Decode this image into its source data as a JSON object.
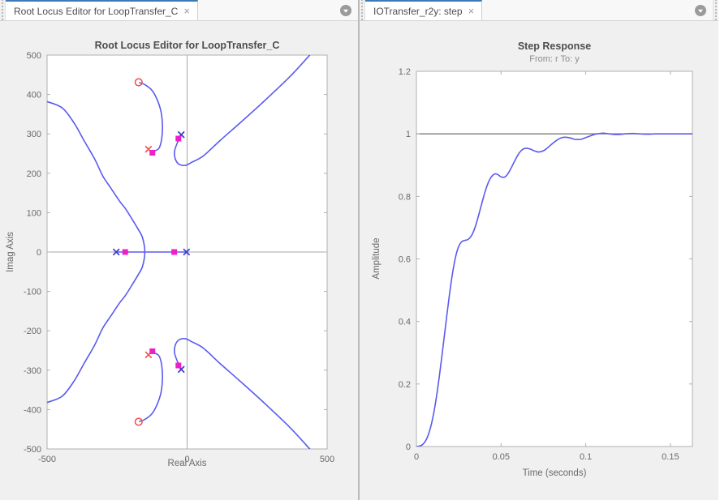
{
  "icons": {
    "close": "×",
    "menu_chevron": "▼"
  },
  "colors": {
    "curve": "#5a5af0",
    "pole_blue": "#3939cf",
    "pole_red": "#ef5656",
    "closed_loop": "#f01ec8",
    "axis_box": "#b0b0b0",
    "zero_line": "#a6a6a6",
    "reference_line": "#4a4a4a",
    "tab_accent": "#3d7bb5"
  },
  "left_panel": {
    "tab": {
      "label": "Root Locus Editor for LoopTransfer_C"
    }
  },
  "right_panel": {
    "tab": {
      "label": "IOTransfer_r2y: step"
    }
  },
  "chart_data": [
    {
      "type": "line",
      "name": "root-locus-editor",
      "title": "Root Locus Editor for LoopTransfer_C",
      "xlabel": "Real Axis",
      "ylabel": "Imag Axis",
      "xlim": [
        -500,
        500
      ],
      "ylim": [
        -500,
        500
      ],
      "grid": false,
      "xticks": {
        "values": [
          -500,
          0,
          500
        ],
        "labels": [
          "-500",
          "0",
          "500"
        ]
      },
      "yticks": {
        "values": [
          500,
          400,
          300,
          200,
          100,
          0,
          -100,
          -200,
          -300,
          -400,
          -500
        ],
        "labels": [
          "500",
          "400",
          "300",
          "200",
          "100",
          "0",
          "-100",
          "-200",
          "-300",
          "-400",
          "-500"
        ]
      },
      "zero_axis_lines": true,
      "branches": [
        [
          [
            -500,
            382
          ],
          [
            -446,
            366
          ],
          [
            -403,
            327
          ],
          [
            -368,
            283
          ],
          [
            -330,
            236
          ],
          [
            -301,
            193
          ],
          [
            -272,
            162
          ],
          [
            -241,
            129
          ],
          [
            -220,
            110
          ],
          [
            -197,
            84
          ],
          [
            -174,
            57
          ],
          [
            -159,
            36
          ],
          [
            -151,
            0
          ],
          [
            -159,
            -36
          ],
          [
            -174,
            -57
          ],
          [
            -197,
            -84
          ],
          [
            -220,
            -110
          ],
          [
            -241,
            -129
          ],
          [
            -272,
            -162
          ],
          [
            -301,
            -193
          ],
          [
            -330,
            -236
          ],
          [
            -368,
            -283
          ],
          [
            -403,
            -327
          ],
          [
            -446,
            -366
          ],
          [
            -500,
            -382
          ]
        ],
        [
          [
            -253,
            0
          ],
          [
            -2,
            0
          ]
        ],
        [
          [
            -123,
            255
          ],
          [
            -101,
            263
          ],
          [
            -91,
            286
          ],
          [
            -88,
            319
          ],
          [
            -93,
            356
          ],
          [
            -107,
            387
          ],
          [
            -126,
            411
          ],
          [
            -151,
            425
          ],
          [
            -170,
            430
          ]
        ],
        [
          [
            -123,
            -255
          ],
          [
            -101,
            -263
          ],
          [
            -91,
            -286
          ],
          [
            -88,
            -319
          ],
          [
            -93,
            -356
          ],
          [
            -107,
            -387
          ],
          [
            -126,
            -411
          ],
          [
            -151,
            -425
          ],
          [
            -170,
            -430
          ]
        ],
        [
          [
            -21,
            296
          ],
          [
            -35,
            277
          ],
          [
            -45,
            255
          ],
          [
            -42,
            236
          ],
          [
            -29,
            223
          ],
          [
            -6,
            220
          ],
          [
            17,
            228
          ],
          [
            58,
            244
          ],
          [
            119,
            284
          ],
          [
            191,
            329
          ],
          [
            278,
            385
          ],
          [
            368,
            446
          ],
          [
            438,
            500
          ]
        ],
        [
          [
            -21,
            -296
          ],
          [
            -35,
            -277
          ],
          [
            -45,
            -255
          ],
          [
            -42,
            -236
          ],
          [
            -29,
            -223
          ],
          [
            -6,
            -220
          ],
          [
            17,
            -228
          ],
          [
            58,
            -244
          ],
          [
            119,
            -284
          ],
          [
            191,
            -329
          ],
          [
            278,
            -385
          ],
          [
            368,
            -446
          ],
          [
            438,
            -500
          ]
        ]
      ],
      "markers": [
        {
          "shape": "x",
          "color_key": "pole_blue",
          "label": "fixed open-loop poles",
          "points": [
            [
              -253,
              0
            ],
            [
              -2,
              0
            ],
            [
              -21,
              298
            ],
            [
              -21,
              -298
            ]
          ]
        },
        {
          "shape": "x",
          "color_key": "pole_red",
          "label": "compensator poles",
          "points": [
            [
              -138,
              261
            ],
            [
              -138,
              -261
            ]
          ]
        },
        {
          "shape": "o",
          "color_key": "pole_red",
          "label": "compensator zeros",
          "points": [
            [
              -173,
              431
            ],
            [
              -173,
              -431
            ]
          ]
        },
        {
          "shape": "square",
          "color_key": "closed_loop",
          "label": "closed-loop poles",
          "points": [
            [
              -221,
              0
            ],
            [
              -46,
              0
            ],
            [
              -124,
              252
            ],
            [
              -124,
              -252
            ],
            [
              -31,
              288
            ],
            [
              -31,
              -288
            ]
          ]
        }
      ]
    },
    {
      "type": "line",
      "name": "step-response",
      "title": "Step Response",
      "subtitle": "From: r  To: y",
      "xlabel": "Time (seconds)",
      "ylabel": "Amplitude",
      "xlim": [
        0,
        0.163
      ],
      "ylim": [
        0,
        1.2
      ],
      "grid": false,
      "xticks": {
        "values": [
          0,
          0.05,
          0.1,
          0.15
        ],
        "labels": [
          "0",
          "0.05",
          "0.1",
          "0.15"
        ]
      },
      "yticks": {
        "values": [
          0,
          0.2,
          0.4,
          0.6,
          0.8,
          1,
          1.2
        ],
        "labels": [
          "0",
          "0.2",
          "0.4",
          "0.6",
          "0.8",
          "1",
          "1.2"
        ]
      },
      "reference_line_y": 1,
      "series": [
        {
          "name": "step response r to y",
          "points": [
            [
              0,
              0
            ],
            [
              0.0015,
              0.001
            ],
            [
              0.003,
              0.004
            ],
            [
              0.0045,
              0.011
            ],
            [
              0.006,
              0.024
            ],
            [
              0.0075,
              0.045
            ],
            [
              0.009,
              0.075
            ],
            [
              0.0105,
              0.115
            ],
            [
              0.012,
              0.165
            ],
            [
              0.0135,
              0.223
            ],
            [
              0.015,
              0.287
            ],
            [
              0.0165,
              0.354
            ],
            [
              0.018,
              0.421
            ],
            [
              0.0195,
              0.485
            ],
            [
              0.021,
              0.543
            ],
            [
              0.0225,
              0.59
            ],
            [
              0.024,
              0.625
            ],
            [
              0.0255,
              0.646
            ],
            [
              0.027,
              0.656
            ],
            [
              0.0285,
              0.659
            ],
            [
              0.03,
              0.661
            ],
            [
              0.0315,
              0.667
            ],
            [
              0.033,
              0.679
            ],
            [
              0.0345,
              0.699
            ],
            [
              0.036,
              0.725
            ],
            [
              0.0375,
              0.755
            ],
            [
              0.039,
              0.785
            ],
            [
              0.0405,
              0.814
            ],
            [
              0.042,
              0.838
            ],
            [
              0.0435,
              0.856
            ],
            [
              0.045,
              0.867
            ],
            [
              0.0465,
              0.872
            ],
            [
              0.048,
              0.87
            ],
            [
              0.0495,
              0.864
            ],
            [
              0.051,
              0.861
            ],
            [
              0.0525,
              0.863
            ],
            [
              0.054,
              0.872
            ],
            [
              0.0555,
              0.886
            ],
            [
              0.057,
              0.902
            ],
            [
              0.0585,
              0.918
            ],
            [
              0.06,
              0.933
            ],
            [
              0.0615,
              0.944
            ],
            [
              0.063,
              0.951
            ],
            [
              0.0645,
              0.954
            ],
            [
              0.066,
              0.953
            ],
            [
              0.0675,
              0.951
            ],
            [
              0.069,
              0.947
            ],
            [
              0.0705,
              0.944
            ],
            [
              0.072,
              0.942
            ],
            [
              0.0735,
              0.943
            ],
            [
              0.075,
              0.946
            ],
            [
              0.0765,
              0.951
            ],
            [
              0.078,
              0.958
            ],
            [
              0.0795,
              0.965
            ],
            [
              0.081,
              0.972
            ],
            [
              0.0825,
              0.978
            ],
            [
              0.084,
              0.983
            ],
            [
              0.0855,
              0.987
            ],
            [
              0.087,
              0.989
            ],
            [
              0.0885,
              0.989
            ],
            [
              0.09,
              0.988
            ],
            [
              0.0915,
              0.986
            ],
            [
              0.093,
              0.983
            ],
            [
              0.0945,
              0.982
            ],
            [
              0.096,
              0.982
            ],
            [
              0.0975,
              0.983
            ],
            [
              0.099,
              0.986
            ],
            [
              0.1005,
              0.989
            ],
            [
              0.102,
              0.992
            ],
            [
              0.1035,
              0.995
            ],
            [
              0.105,
              0.998
            ],
            [
              0.1065,
              1.0
            ],
            [
              0.108,
              1.001
            ],
            [
              0.1095,
              1.002
            ],
            [
              0.111,
              1.002
            ],
            [
              0.1125,
              1.001
            ],
            [
              0.114,
              1.0
            ],
            [
              0.1155,
              0.999
            ],
            [
              0.117,
              0.998
            ],
            [
              0.1185,
              0.998
            ],
            [
              0.12,
              0.998
            ],
            [
              0.1215,
              0.999
            ],
            [
              0.123,
              1.0
            ],
            [
              0.126,
              1.001
            ],
            [
              0.129,
              1.001
            ],
            [
              0.132,
              1.0
            ],
            [
              0.135,
              0.999
            ],
            [
              0.138,
              0.999
            ],
            [
              0.141,
              1.0
            ],
            [
              0.145,
              1.0
            ],
            [
              0.15,
              1.0
            ],
            [
              0.155,
              1.0
            ],
            [
              0.16,
              1.0
            ],
            [
              0.163,
              1.0
            ]
          ]
        }
      ]
    }
  ]
}
